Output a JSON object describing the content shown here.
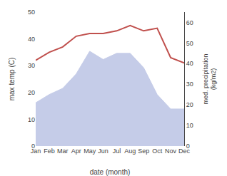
{
  "chart_data": {
    "type": "line",
    "categories": [
      "Jan",
      "Feb",
      "Mar",
      "Apr",
      "May",
      "Jun",
      "Jul",
      "Aug",
      "Sep",
      "Oct",
      "Nov",
      "Dec"
    ],
    "series": [
      {
        "type": "area",
        "axis": "y2",
        "color": "#c5cce8",
        "values": [
          21,
          25,
          28,
          35,
          46,
          42,
          45,
          45,
          38,
          25,
          18,
          18
        ]
      },
      {
        "type": "line",
        "color": "#c0504d",
        "values": [
          32,
          35,
          37,
          41,
          42,
          42,
          43,
          45,
          43,
          44,
          33,
          31
        ]
      }
    ],
    "xlabel": "date (month)",
    "ylabel": "max temp (C)",
    "y2label": "med. precipitation\n(kg/m2)",
    "ylim": [
      0,
      50
    ],
    "yticks": [
      0,
      10,
      20,
      30,
      40,
      50
    ],
    "y2lim": [
      0,
      65
    ],
    "y2ticks": [
      0,
      10,
      20,
      30,
      40,
      50,
      60
    ],
    "grid": false
  }
}
